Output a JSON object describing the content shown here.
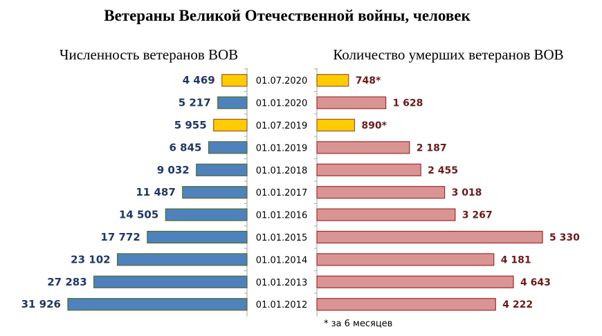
{
  "chart_data": {
    "type": "bar",
    "title": "Ветераны Великой Отечественной войны, человек",
    "categories": [
      "01.07.2020",
      "01.01.2020",
      "01.07.2019",
      "01.01.2019",
      "01.01.2018",
      "01.01.2017",
      "01.01.2016",
      "01.01.2015",
      "01.01.2014",
      "01.01.2013",
      "01.01.2012"
    ],
    "series": [
      {
        "name": "Численность ветеранов ВОВ",
        "values": [
          4469,
          5217,
          5955,
          6845,
          9032,
          11487,
          14505,
          17772,
          23102,
          27283,
          31926
        ],
        "labels": [
          "4 469",
          "5 217",
          "5 955",
          "6 845",
          "9 032",
          "11 487",
          "14 505",
          "17 772",
          "23 102",
          "27 283",
          "31 926"
        ]
      },
      {
        "name": "Количество умерших ветеранов ВОВ",
        "values": [
          748,
          1628,
          890,
          2187,
          2455,
          3018,
          3267,
          5330,
          4181,
          4643,
          4222
        ],
        "labels": [
          "748*",
          "1 628",
          "890*",
          "2 187",
          "2 455",
          "3 018",
          "3 267",
          "5 330",
          "4 181",
          "4 643",
          "4 222"
        ]
      }
    ],
    "highlighted": [
      true,
      false,
      true,
      false,
      false,
      false,
      false,
      false,
      false,
      false,
      false
    ],
    "colors": {
      "left": "#4f81bd",
      "left_border": "#4e6b2a",
      "right": "#d99594",
      "right_border": "#a0282a",
      "highlight": "#ffcc00",
      "highlight_border": "#a0522d"
    },
    "footnote": "* за 6 месяцев"
  }
}
